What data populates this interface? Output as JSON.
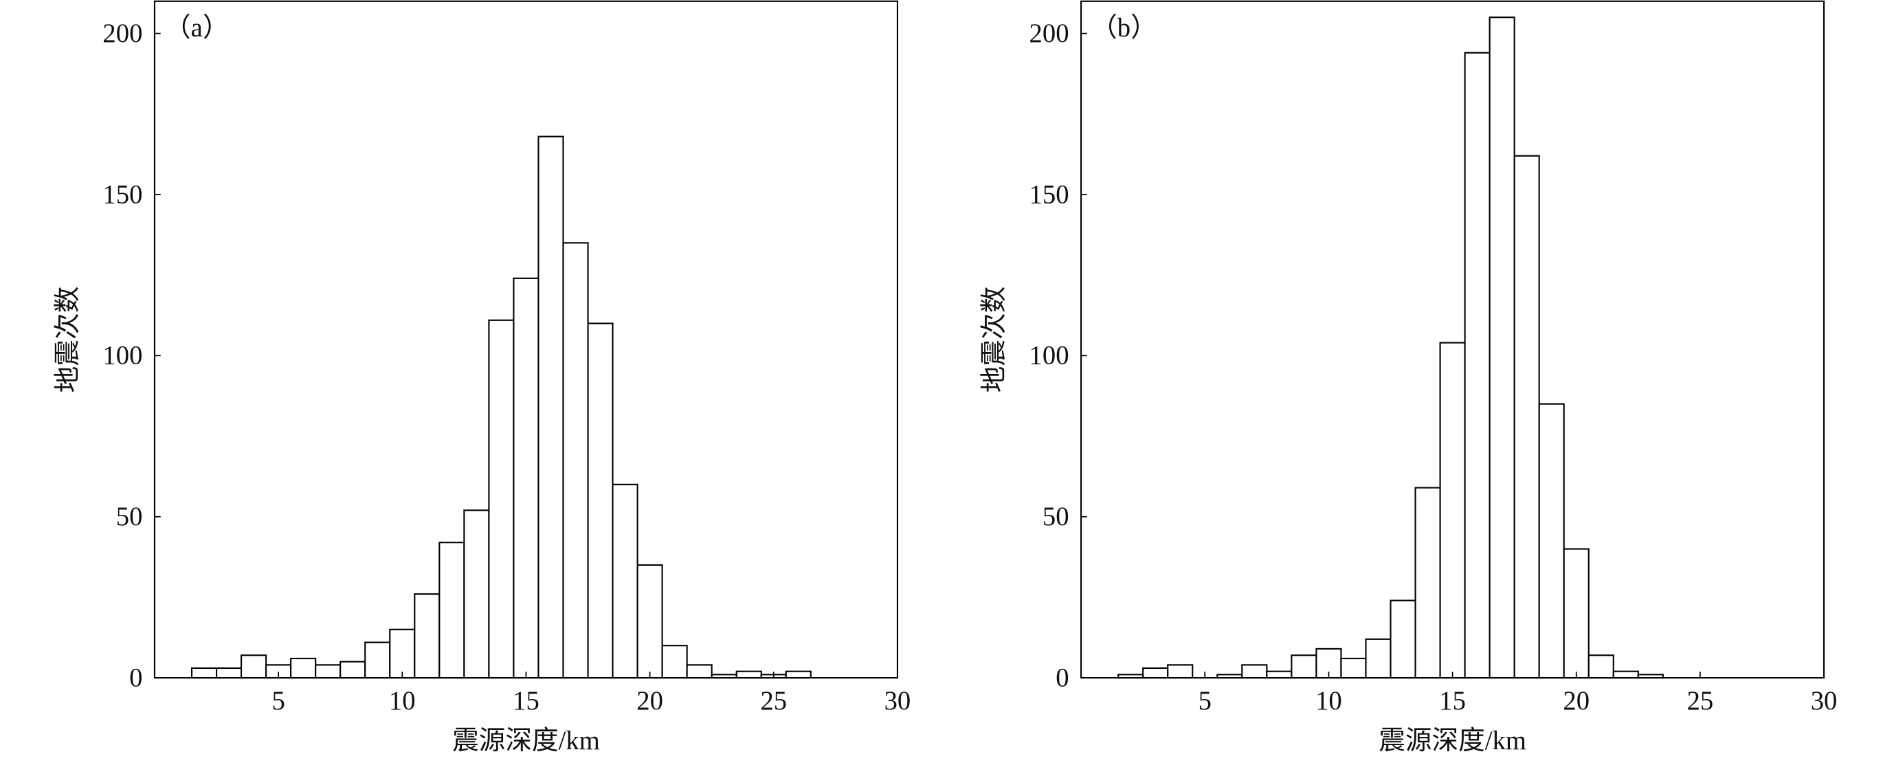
{
  "chart_data": [
    {
      "type": "histogram",
      "panel_label": "（a）",
      "x_label": "震源深度/km",
      "y_label": "地震次数",
      "bins": [
        1.5,
        2.5,
        3.5,
        4.5,
        5.5,
        6.5,
        7.5,
        8.5,
        9.5,
        10.5,
        11.5,
        12.5,
        13.5,
        14.5,
        15.5,
        16.5,
        17.5,
        18.5,
        19.5,
        20.5,
        21.5,
        22.5,
        23.5,
        24.5,
        25.5,
        26.5
      ],
      "counts": [
        3,
        3,
        7,
        4,
        6,
        4,
        5,
        11,
        15,
        26,
        42,
        52,
        111,
        124,
        168,
        135,
        110,
        60,
        35,
        10,
        4,
        1,
        2,
        1,
        2
      ],
      "color": "#ffffff",
      "edgecolor": "#000000",
      "xlim": [
        0,
        30
      ],
      "xticks": [
        5,
        10,
        15,
        20,
        25,
        30
      ],
      "ylim": [
        0,
        210
      ],
      "yticks": [
        0,
        50,
        100,
        150,
        200
      ]
    },
    {
      "type": "histogram",
      "panel_label": "（b）",
      "x_label": "震源深度/km",
      "y_label": "地震次数",
      "bins": [
        1.5,
        2.5,
        3.5,
        4.5,
        5.5,
        6.5,
        7.5,
        8.5,
        9.5,
        10.5,
        11.5,
        12.5,
        13.5,
        14.5,
        15.5,
        16.5,
        17.5,
        18.5,
        19.5,
        20.5,
        21.5,
        22.5,
        23.5
      ],
      "counts": [
        1,
        3,
        4,
        0,
        1,
        4,
        2,
        7,
        9,
        6,
        12,
        24,
        59,
        104,
        194,
        205,
        162,
        85,
        40,
        7,
        2,
        1
      ],
      "color": "#ffffff",
      "edgecolor": "#000000",
      "xlim": [
        0,
        30
      ],
      "xticks": [
        5,
        10,
        15,
        20,
        25,
        30
      ],
      "ylim": [
        0,
        210
      ],
      "yticks": [
        0,
        50,
        100,
        150,
        200
      ]
    }
  ]
}
